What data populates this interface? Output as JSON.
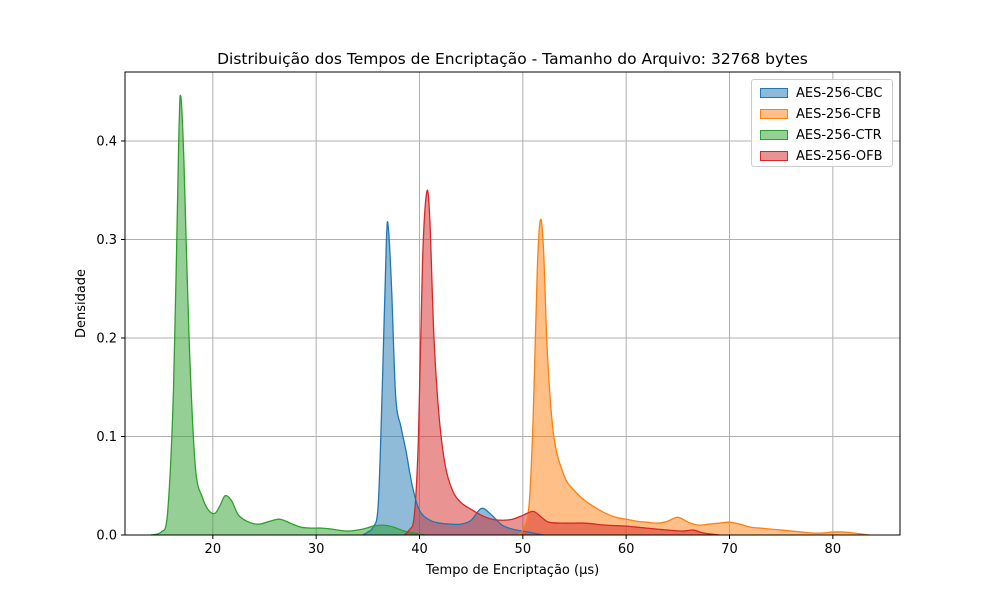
{
  "chart_data": {
    "type": "area",
    "title": "Distribuição dos Tempos de Encriptação - Tamanho do Arquivo: 32768 bytes",
    "xlabel": "Tempo de Encriptação (µs)",
    "ylabel": "Densidade",
    "xlim": [
      11.5,
      86.5
    ],
    "ylim": [
      0,
      0.47
    ],
    "xticks": [
      20,
      30,
      40,
      50,
      60,
      70,
      80
    ],
    "xtick_labels": [
      "20",
      "30",
      "40",
      "50",
      "60",
      "70",
      "80"
    ],
    "yticks": [
      0,
      0.1,
      0.2,
      0.3,
      0.4
    ],
    "ytick_labels": [
      "0.0",
      "0.1",
      "0.2",
      "0.3",
      "0.4"
    ],
    "grid": true,
    "legend_position": "top-right",
    "series": [
      {
        "name": "AES-256-CBC",
        "color": "#1f77b4",
        "points": [
          [
            34.5,
            0
          ],
          [
            35,
            0.003
          ],
          [
            35.5,
            0.008
          ],
          [
            36,
            0.03
          ],
          [
            36.4,
            0.15
          ],
          [
            36.8,
            0.3
          ],
          [
            37,
            0.31
          ],
          [
            37.3,
            0.25
          ],
          [
            37.7,
            0.14
          ],
          [
            38.2,
            0.11
          ],
          [
            38.7,
            0.085
          ],
          [
            39.3,
            0.05
          ],
          [
            40,
            0.025
          ],
          [
            41,
            0.015
          ],
          [
            42,
            0.012
          ],
          [
            43,
            0.011
          ],
          [
            44,
            0.011
          ],
          [
            45,
            0.015
          ],
          [
            46,
            0.027
          ],
          [
            47,
            0.02
          ],
          [
            48,
            0.01
          ],
          [
            49,
            0.006
          ],
          [
            50,
            0.004
          ],
          [
            51,
            0.002
          ],
          [
            52,
            0
          ]
        ]
      },
      {
        "name": "AES-256-CFB",
        "color": "#ff7f0e",
        "points": [
          [
            49.5,
            0
          ],
          [
            50,
            0.005
          ],
          [
            50.6,
            0.03
          ],
          [
            51,
            0.12
          ],
          [
            51.4,
            0.27
          ],
          [
            51.7,
            0.32
          ],
          [
            52,
            0.29
          ],
          [
            52.4,
            0.18
          ],
          [
            53,
            0.1
          ],
          [
            54,
            0.06
          ],
          [
            55,
            0.045
          ],
          [
            56,
            0.035
          ],
          [
            57,
            0.028
          ],
          [
            58,
            0.022
          ],
          [
            59,
            0.018
          ],
          [
            60,
            0.016
          ],
          [
            61,
            0.014
          ],
          [
            62,
            0.013
          ],
          [
            63,
            0.012
          ],
          [
            64,
            0.014
          ],
          [
            65,
            0.018
          ],
          [
            66,
            0.013
          ],
          [
            67,
            0.01
          ],
          [
            68,
            0.011
          ],
          [
            69,
            0.012
          ],
          [
            70,
            0.013
          ],
          [
            71,
            0.011
          ],
          [
            72,
            0.008
          ],
          [
            73,
            0.007
          ],
          [
            74,
            0.006
          ],
          [
            75,
            0.005
          ],
          [
            76,
            0.004
          ],
          [
            77,
            0.003
          ],
          [
            78,
            0.002
          ],
          [
            79,
            0.002
          ],
          [
            80,
            0.003
          ],
          [
            81,
            0.003
          ],
          [
            82,
            0.002
          ],
          [
            83.5,
            0
          ]
        ]
      },
      {
        "name": "AES-256-CTR",
        "color": "#2ca02c",
        "points": [
          [
            14,
            0
          ],
          [
            15,
            0.003
          ],
          [
            15.6,
            0.02
          ],
          [
            16.2,
            0.15
          ],
          [
            16.7,
            0.4
          ],
          [
            16.9,
            0.445
          ],
          [
            17.2,
            0.38
          ],
          [
            17.7,
            0.2
          ],
          [
            18.3,
            0.07
          ],
          [
            19,
            0.038
          ],
          [
            19.6,
            0.025
          ],
          [
            20.2,
            0.022
          ],
          [
            20.7,
            0.03
          ],
          [
            21.2,
            0.04
          ],
          [
            21.8,
            0.035
          ],
          [
            22.5,
            0.02
          ],
          [
            23.5,
            0.013
          ],
          [
            24.5,
            0.011
          ],
          [
            25.5,
            0.014
          ],
          [
            26.5,
            0.016
          ],
          [
            27.5,
            0.012
          ],
          [
            28.5,
            0.008
          ],
          [
            29.5,
            0.007
          ],
          [
            30.5,
            0.007
          ],
          [
            31.5,
            0.006
          ],
          [
            33,
            0.004
          ],
          [
            34.5,
            0.006
          ],
          [
            35.5,
            0.009
          ],
          [
            36.5,
            0.01
          ],
          [
            37.5,
            0.008
          ],
          [
            38.5,
            0.004
          ],
          [
            39.5,
            0.002
          ],
          [
            40.5,
            0
          ]
        ]
      },
      {
        "name": "AES-256-OFB",
        "color": "#d62728",
        "points": [
          [
            38.5,
            0
          ],
          [
            39,
            0.005
          ],
          [
            39.5,
            0.02
          ],
          [
            39.9,
            0.1
          ],
          [
            40.3,
            0.28
          ],
          [
            40.7,
            0.348
          ],
          [
            41,
            0.32
          ],
          [
            41.4,
            0.2
          ],
          [
            41.9,
            0.12
          ],
          [
            42.5,
            0.07
          ],
          [
            43.2,
            0.045
          ],
          [
            44,
            0.033
          ],
          [
            45,
            0.026
          ],
          [
            46,
            0.02
          ],
          [
            47,
            0.016
          ],
          [
            48,
            0.015
          ],
          [
            49,
            0.016
          ],
          [
            50,
            0.02
          ],
          [
            51,
            0.024
          ],
          [
            51.8,
            0.018
          ],
          [
            52.5,
            0.013
          ],
          [
            54,
            0.012
          ],
          [
            56,
            0.012
          ],
          [
            58,
            0.01
          ],
          [
            60,
            0.009
          ],
          [
            62,
            0.007
          ],
          [
            64,
            0.005
          ],
          [
            65.5,
            0.004
          ],
          [
            66.5,
            0.005
          ],
          [
            67.5,
            0.002
          ],
          [
            69,
            0
          ]
        ]
      }
    ]
  }
}
